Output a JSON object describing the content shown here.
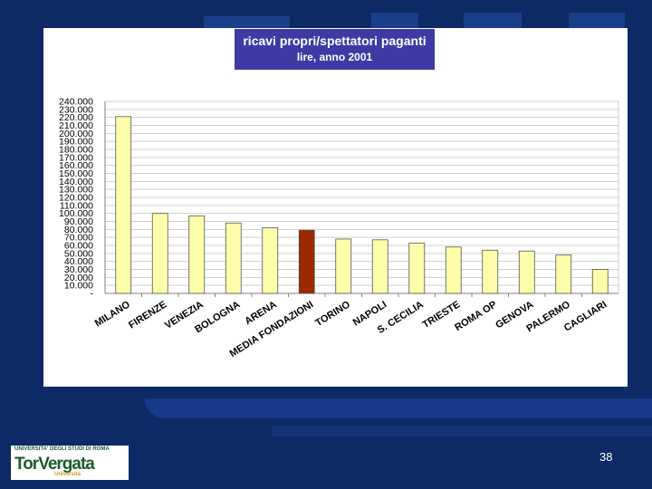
{
  "chart_data": {
    "type": "bar",
    "title": "ricavi propri/spettatori paganti",
    "subtitle": "lire, anno 2001",
    "categories": [
      "MILANO",
      "FIRENZE",
      "VENEZIA",
      "BOLOGNA",
      "ARENA",
      "MEDIA FONDAZIONI",
      "TORINO",
      "NAPOLI",
      "S. CECILIA",
      "TRIESTE",
      "ROMA OP",
      "GENOVA",
      "PALERMO",
      "CAGLIARI"
    ],
    "values": [
      221000,
      100000,
      97000,
      88000,
      82000,
      79000,
      68000,
      67000,
      63000,
      58000,
      54000,
      53000,
      48000,
      30000
    ],
    "highlight_index": 5,
    "ylim": [
      0,
      240000
    ],
    "yticks": [
      "-",
      "10.000",
      "20.000",
      "30.000",
      "40.000",
      "50.000",
      "60.000",
      "70.000",
      "80.000",
      "90.000",
      "100.000",
      "110.000",
      "120.000",
      "130.000",
      "140.000",
      "150.000",
      "160.000",
      "170.000",
      "180.000",
      "190.000",
      "200.000",
      "210.000",
      "220.000",
      "230.000",
      "240.000"
    ],
    "xlabel": "",
    "ylabel": "",
    "grid": true,
    "colors": {
      "bar": "#fefeaa",
      "highlight": "#9b2a00",
      "edge": "#555555"
    }
  },
  "footer": {
    "logo_top": "UNIVERSITA' DEGLI STUDI DI ROMA",
    "logo_main": "TorVergata",
    "logo_bottom": "Università",
    "page_number": "38"
  }
}
